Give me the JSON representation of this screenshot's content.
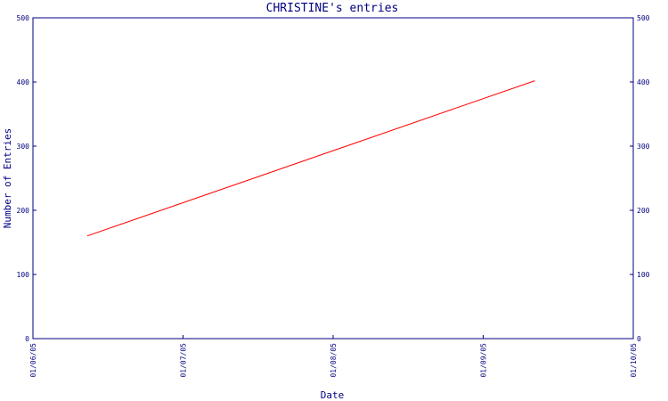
{
  "chart_data": {
    "type": "line",
    "title": "CHRISTINE's entries",
    "xlabel": "Date",
    "ylabel": "Number of Entries",
    "x_ticks": [
      "01/06/05",
      "01/07/05",
      "01/08/05",
      "01/09/05",
      "01/10/05"
    ],
    "y_ticks": [
      "0",
      "100",
      "200",
      "300",
      "400",
      "500"
    ],
    "ylim": [
      0,
      500
    ],
    "xlim": [
      "2005-06-01",
      "2005-10-01"
    ],
    "grid": false,
    "series": [
      {
        "points": [
          {
            "x": "2005-06-12",
            "y": 160
          },
          {
            "x": "2005-09-11",
            "y": 402
          }
        ]
      }
    ],
    "colors": {
      "axis": "#000080",
      "line": "#ff0000"
    }
  }
}
